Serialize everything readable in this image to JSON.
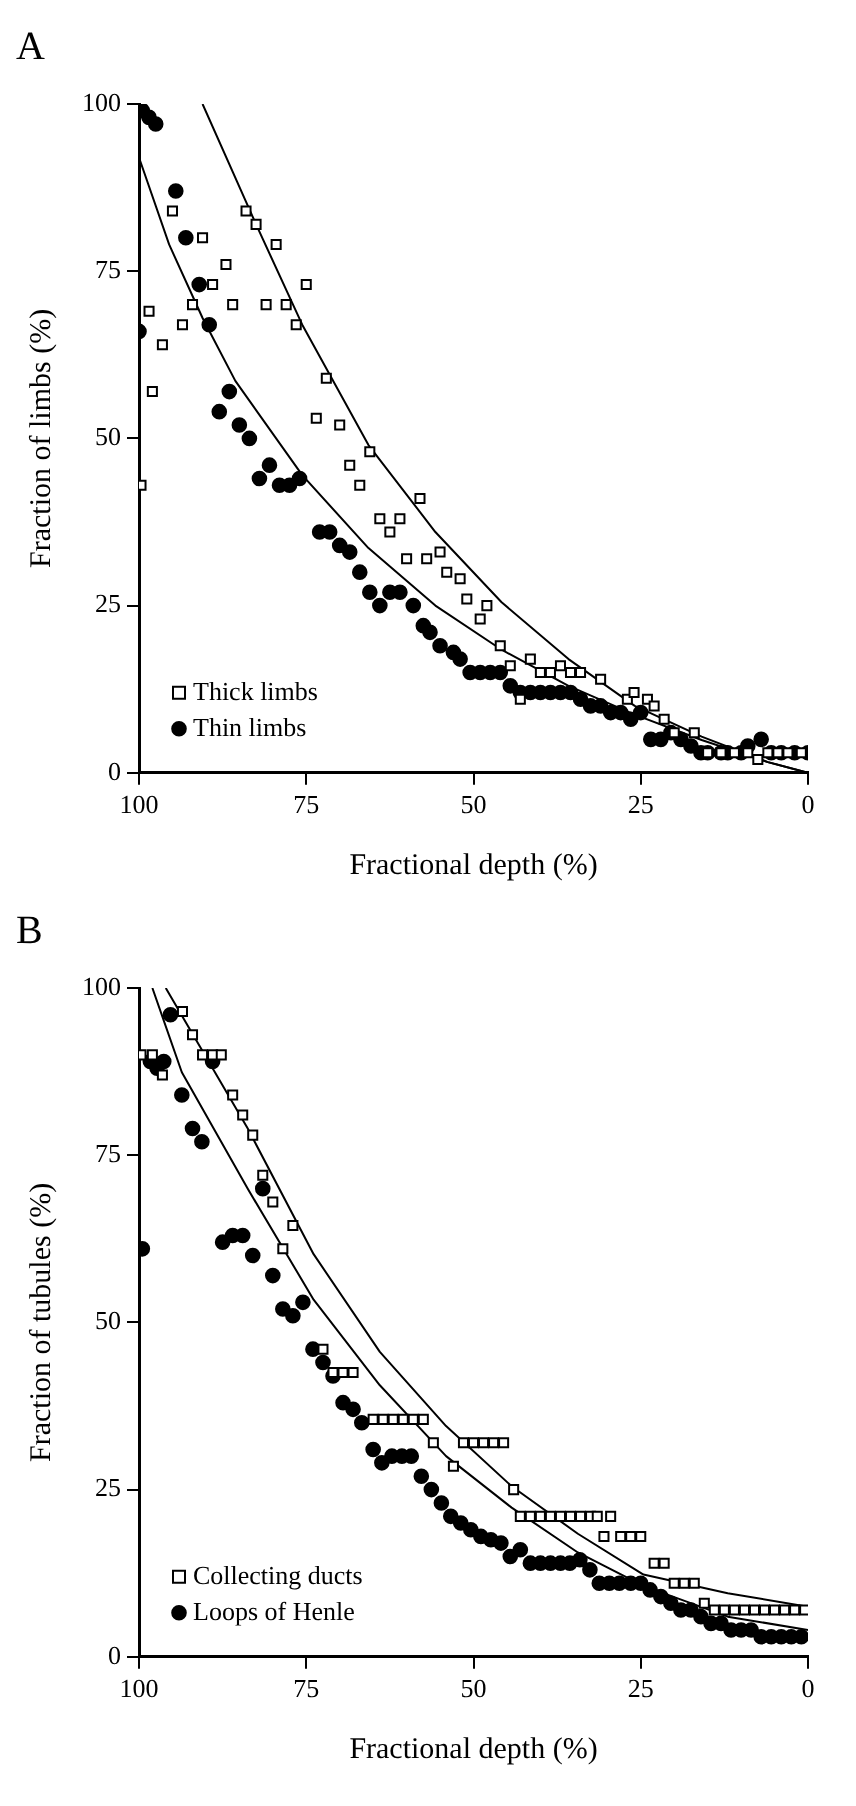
{
  "chart_data": [
    {
      "type": "scatter",
      "title": "A",
      "xlabel": "Fractional depth (%)",
      "ylabel": "Fraction of limbs (%)",
      "xlim": [
        100,
        0
      ],
      "xticks": [
        100,
        75,
        50,
        25,
        0
      ],
      "ylim": [
        0,
        100
      ],
      "yticks": [
        0,
        25,
        50,
        75,
        100
      ],
      "grid": false,
      "legend": "bottom left",
      "series": [
        {
          "name": "Thick limbs",
          "color": "#000000",
          "marker": "square",
          "x": [
            99.7,
            98.5,
            98,
            96.5,
            95,
            93.5,
            92,
            90.5,
            89,
            87,
            86,
            84,
            82.5,
            81,
            79.5,
            78,
            76.5,
            75,
            73.5,
            72,
            70,
            68.5,
            67,
            65.5,
            64,
            62.5,
            61,
            60,
            58,
            57,
            55,
            54,
            52,
            51,
            49,
            48,
            46,
            44.5,
            43,
            41.5,
            40,
            38.5,
            37,
            35.5,
            34,
            31,
            27,
            26,
            24,
            23,
            21.5,
            20,
            17,
            15,
            13,
            11,
            9,
            7.5,
            6,
            4.5,
            3,
            1
          ],
          "values": [
            43,
            69,
            57,
            64,
            84,
            67,
            70,
            80,
            73,
            76,
            70,
            84,
            82,
            70,
            79,
            70,
            67,
            73,
            53,
            59,
            52,
            46,
            43,
            48,
            38,
            36,
            38,
            32,
            41,
            32,
            33,
            30,
            29,
            26,
            23,
            25,
            19,
            16,
            11,
            17,
            15,
            15,
            16,
            15,
            15,
            14,
            11,
            12,
            11,
            10,
            8,
            6,
            6,
            3,
            3,
            3,
            3,
            2,
            3,
            3,
            3,
            3
          ]
        },
        {
          "name": "Thin limbs",
          "color": "#000000",
          "marker": "circle",
          "x": [
            100,
            99.5,
            98.5,
            97.5,
            94.5,
            93,
            91,
            89.5,
            88,
            86.5,
            85,
            83.5,
            82,
            80.5,
            79,
            77.5,
            76,
            73,
            71.5,
            70,
            68.5,
            67,
            65.5,
            64,
            62.5,
            61,
            59,
            57.5,
            56.5,
            55,
            53,
            52,
            50.5,
            49,
            47.5,
            46,
            44.5,
            43,
            41.5,
            40,
            38.5,
            37,
            35.5,
            34,
            32.5,
            31,
            29.5,
            28,
            26.5,
            25,
            23.5,
            22,
            20.5,
            19,
            17.5,
            16,
            15,
            13,
            12,
            10,
            9,
            7,
            5.5,
            4,
            2,
            0
          ],
          "values": [
            66,
            99,
            98,
            97,
            87,
            80,
            73,
            67,
            54,
            57,
            52,
            50,
            44,
            46,
            43,
            43,
            44,
            36,
            36,
            34,
            33,
            30,
            27,
            25,
            27,
            27,
            25,
            22,
            21,
            19,
            18,
            17,
            15,
            15,
            15,
            15,
            13,
            12,
            12,
            12,
            12,
            12,
            12,
            11,
            10,
            10,
            9,
            9,
            8,
            9,
            5,
            5,
            6,
            5,
            4,
            3,
            3,
            3,
            3,
            3,
            4,
            5,
            3,
            3,
            3,
            3
          ]
        },
        {
          "type": "line",
          "color": "#000000",
          "marker": "none",
          "x": [
            90.5,
            82.5,
            75.6,
            65.7,
            55.7,
            45.8,
            35.8,
            25.9,
            15.9,
            6,
            0
          ],
          "values": [
            100,
            82,
            67,
            49,
            36,
            25.5,
            17,
            10,
            5.4,
            1.6,
            0
          ]
        },
        {
          "type": "line",
          "color": "#000000",
          "marker": "none",
          "x": [
            100,
            95.5,
            90.5,
            85.6,
            75.6,
            65.7,
            55.7,
            45.8,
            35.8,
            25.9,
            15.9,
            6,
            0
          ],
          "values": [
            92,
            79,
            68,
            58.6,
            44.5,
            33.6,
            25,
            18.4,
            13,
            8.7,
            4.9,
            1.6,
            0
          ]
        }
      ]
    },
    {
      "type": "scatter",
      "title": "B",
      "xlabel": "Fractional depth (%)",
      "ylabel": "Fraction of tubules (%)",
      "xlim": [
        100,
        0
      ],
      "xticks": [
        100,
        75,
        50,
        25,
        0
      ],
      "ylim": [
        0,
        100
      ],
      "yticks": [
        0,
        25,
        50,
        75,
        100
      ],
      "grid": false,
      "legend": "bottom left",
      "series": [
        {
          "name": "Collecting ducts",
          "color": "#000000",
          "marker": "square",
          "x": [
            99.7,
            98,
            96.5,
            93.5,
            92,
            90.5,
            89,
            87.7,
            86,
            84.5,
            83,
            81.5,
            80,
            78.5,
            77,
            72.5,
            71,
            69.5,
            68,
            65,
            63.5,
            62,
            60.5,
            59,
            57.5,
            56,
            53,
            51.5,
            50,
            48.5,
            47,
            45.5,
            44,
            43,
            41.5,
            40,
            38.5,
            37,
            35.5,
            34,
            32.5,
            31.5,
            29.5,
            30.5,
            28,
            26.5,
            25,
            23,
            21.5,
            20,
            18.5,
            17,
            15.5,
            14,
            12.5,
            11,
            9.5,
            8,
            6.5,
            5,
            3.5,
            2,
            0.5
          ],
          "values": [
            90,
            90,
            87,
            96.5,
            93,
            90,
            90,
            90,
            84,
            81,
            78,
            72,
            68,
            61,
            64.5,
            46,
            42.5,
            42.5,
            42.5,
            35.5,
            35.5,
            35.5,
            35.5,
            35.5,
            35.5,
            32,
            28.5,
            32,
            32,
            32,
            32,
            32,
            25,
            21,
            21,
            21,
            21,
            21,
            21,
            21,
            21,
            21,
            21,
            18,
            18,
            18,
            18,
            14,
            14,
            11,
            11,
            11,
            8,
            7,
            7,
            7,
            7,
            7,
            7,
            7,
            7,
            7,
            7
          ]
        },
        {
          "name": "Loops of Henle",
          "color": "#000000",
          "marker": "circle",
          "x": [
            99.5,
            98.3,
            97.3,
            96.3,
            95.3,
            93.6,
            92,
            90.6,
            89,
            87.5,
            86,
            84.5,
            83,
            81.5,
            80,
            78.5,
            77,
            75.5,
            74,
            72.5,
            71,
            69.5,
            68,
            66.7,
            65,
            63.7,
            62.2,
            60.7,
            59.3,
            57.8,
            56.3,
            54.8,
            53.4,
            51.9,
            50.4,
            48.9,
            47.4,
            45.9,
            44.5,
            43,
            41.5,
            40,
            38.5,
            37,
            35.6,
            34.1,
            32.6,
            31.2,
            29.7,
            28.2,
            26.5,
            25,
            23.6,
            22,
            20.5,
            19,
            17.5,
            16,
            14.5,
            13,
            11.5,
            10,
            8.5,
            7,
            5.5,
            4,
            2.5,
            1
          ],
          "values": [
            61,
            89,
            88,
            89,
            96,
            84,
            79,
            77,
            89,
            62,
            63,
            63,
            60,
            70,
            57,
            52,
            51,
            53,
            46,
            44,
            42,
            38,
            37,
            35,
            31,
            29,
            30,
            30,
            30,
            27,
            25,
            23,
            21,
            20,
            19,
            18,
            17.5,
            17,
            15,
            16,
            14,
            14,
            14,
            14,
            14,
            14.5,
            13,
            11,
            11,
            11,
            11,
            11,
            10,
            9,
            8,
            7,
            7,
            6,
            5,
            5,
            4,
            4,
            4,
            3,
            3,
            3,
            3,
            3
          ]
        },
        {
          "type": "line",
          "color": "#000000",
          "marker": "none",
          "x": [
            96,
            83.7,
            73.9,
            64,
            54.1,
            44.3,
            34.4,
            24.6,
            12,
            0
          ],
          "values": [
            100,
            78.9,
            60.2,
            45.6,
            34.5,
            25.5,
            18.4,
            12.3,
            9.5,
            7.5
          ]
        },
        {
          "type": "line",
          "color": "#000000",
          "marker": "none",
          "x": [
            98,
            93.6,
            83.7,
            73.9,
            64,
            54.1,
            44.3,
            34.4,
            24.6,
            12,
            0
          ],
          "values": [
            100,
            87.4,
            69.9,
            53.4,
            40.6,
            30,
            22.3,
            15.6,
            10.6,
            6,
            4
          ]
        }
      ]
    }
  ]
}
